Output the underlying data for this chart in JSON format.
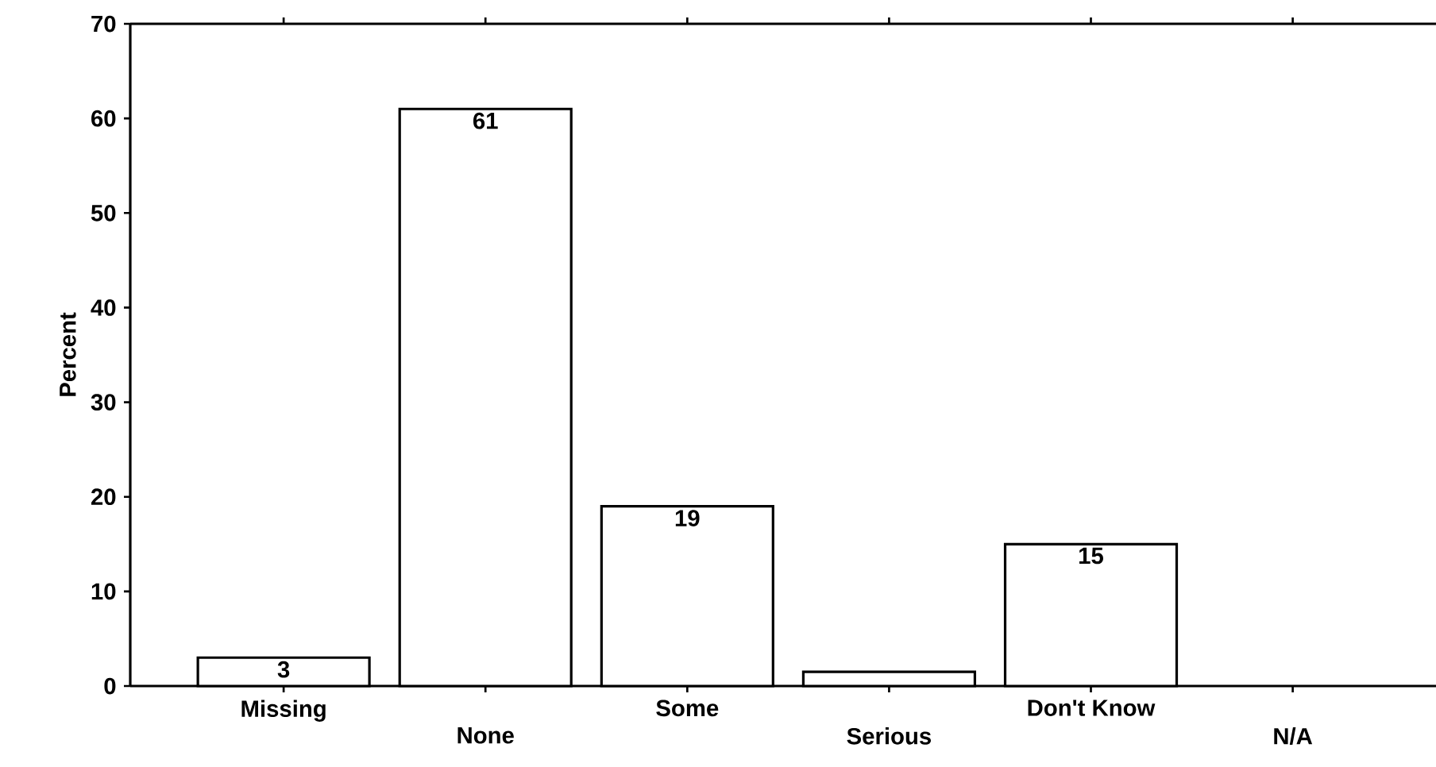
{
  "chart_data": {
    "type": "bar",
    "ylabel": "Percent",
    "categories": [
      "Missing",
      "None",
      "Some",
      "Serious",
      "Don't Know",
      "N/A"
    ],
    "values": [
      3,
      61,
      19,
      1.5,
      15,
      null
    ],
    "value_labels": [
      "3",
      "61",
      "19",
      null,
      "15",
      null
    ],
    "color": "#ffffff",
    "ylim": [
      0,
      70
    ],
    "yticks": [
      0,
      10,
      20,
      30,
      40,
      50,
      60,
      70
    ],
    "grid": false
  }
}
